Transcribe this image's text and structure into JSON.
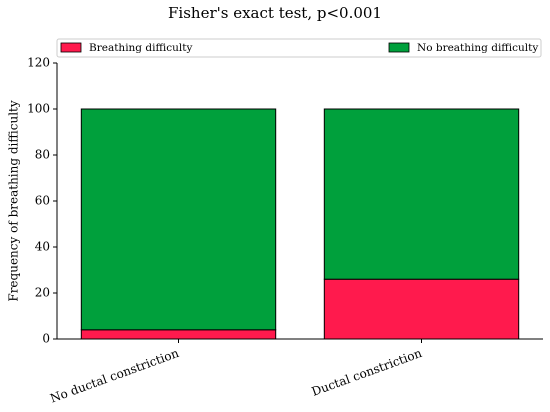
{
  "chart_data": {
    "type": "stacked_bar",
    "title": "Fisher's exact test, p<0.001",
    "y_label": "Frequency of breathing difficulty",
    "categories": [
      "No ductal constriction",
      "Ductal constriction"
    ],
    "series": [
      {
        "name": "Breathing difficulty",
        "color": "#ff1a4d",
        "values": [
          4,
          26
        ]
      },
      {
        "name": "No breathing difficulty",
        "color": "#00a03c",
        "values": [
          96,
          74
        ]
      }
    ],
    "ylim": [
      0,
      120
    ],
    "yticks": [
      0,
      20,
      40,
      60,
      80,
      100,
      120
    ],
    "legend": "top"
  }
}
